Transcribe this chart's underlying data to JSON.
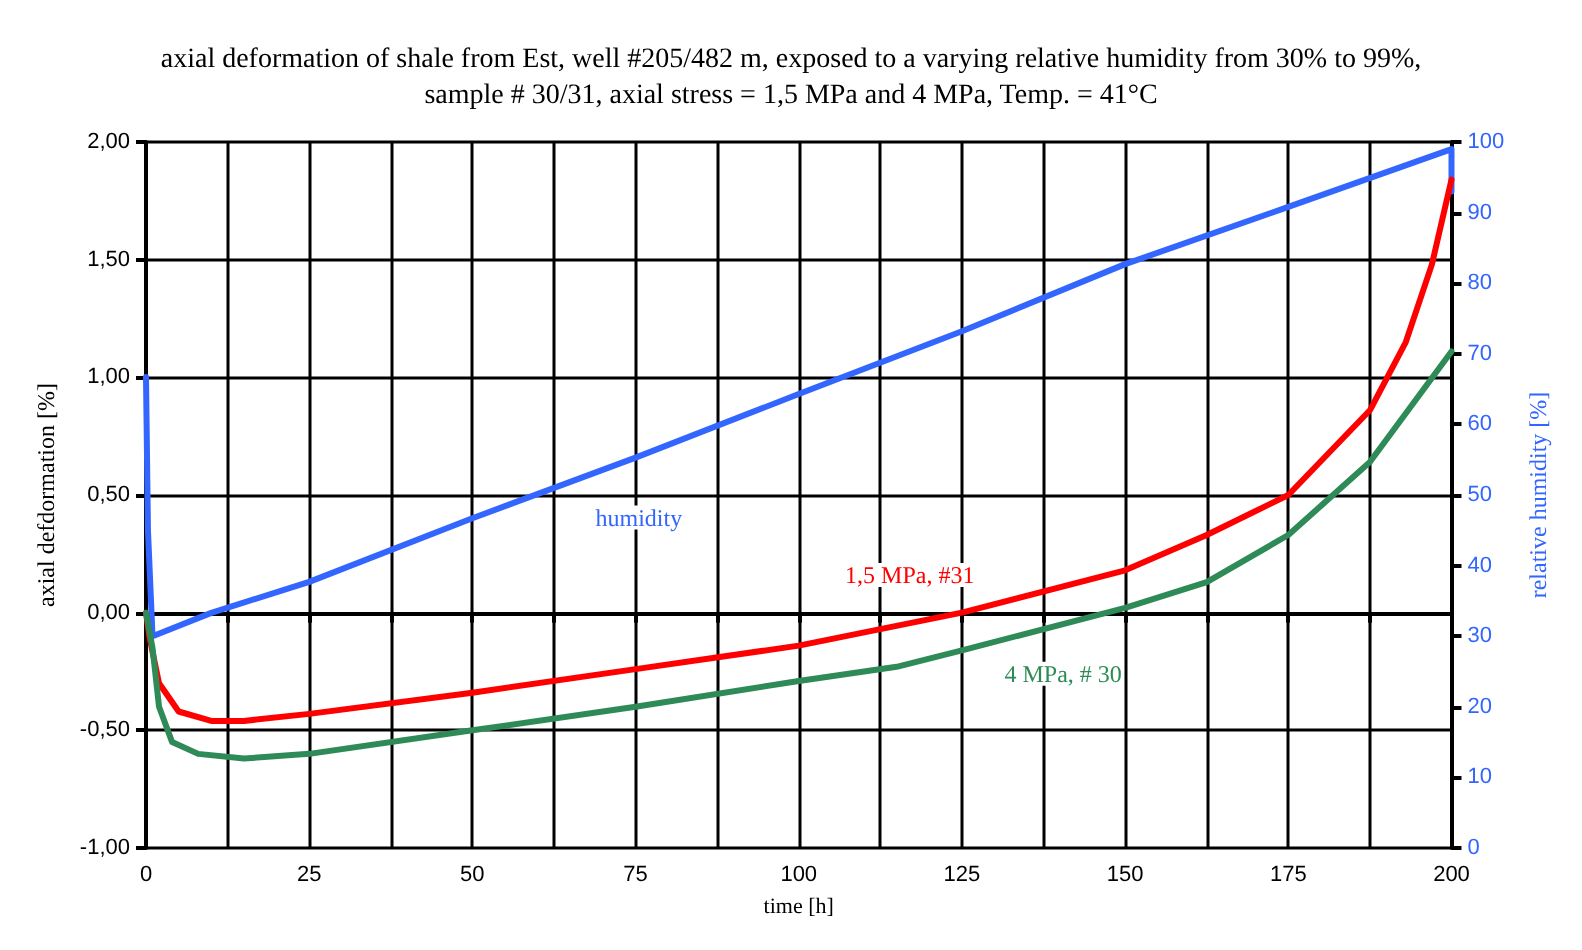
{
  "chart_data": {
    "type": "line",
    "title": "axial deformation of shale from Est, well #205/482 m, exposed to a varying relative humidity from 30% to 99%,\nsample # 30/31, axial stress = 1,5 MPa and 4 MPa, Temp. = 41°C",
    "xlabel": "time [h]",
    "ylabel": "axial defdormation [%]",
    "y2label": "relative humidity [%]",
    "grid": true,
    "legend": false,
    "marker": "none",
    "xlim": [
      0,
      200
    ],
    "xticks": [
      0,
      {
        "value": 12.5,
        "label": null
      },
      25,
      {
        "value": 37.5,
        "label": null
      },
      50,
      {
        "value": 62.5,
        "label": null
      },
      75,
      {
        "value": 87.5,
        "label": null
      },
      100,
      {
        "value": 112.5,
        "label": null
      },
      125,
      {
        "value": 137.5,
        "label": null
      },
      150,
      {
        "value": 162.5,
        "label": null
      },
      175,
      {
        "value": 187.5,
        "label": null
      },
      200
    ],
    "ylim": [
      -1,
      2
    ],
    "yticks": [
      {
        "value": -1,
        "label": "-1,00"
      },
      {
        "value": -0.5,
        "label": "-0,50"
      },
      {
        "value": 0,
        "label": "0,00"
      },
      {
        "value": 0.5,
        "label": "0,50"
      },
      {
        "value": 1,
        "label": "1,00"
      },
      {
        "value": 1.5,
        "label": "1,50"
      },
      {
        "value": 2,
        "label": "2,00"
      }
    ],
    "y2lim": [
      0,
      100
    ],
    "y2ticks": [
      0,
      10,
      20,
      30,
      40,
      50,
      60,
      70,
      80,
      90,
      100
    ],
    "series": [
      {
        "name": "humidity",
        "color": "#3366ff",
        "axis": "y2",
        "x": [
          0,
          0.3,
          1,
          10,
          25,
          50,
          75,
          100,
          125,
          150,
          175,
          200,
          200
        ],
        "values": [
          66.7,
          45,
          30,
          33.3,
          37.7,
          46.7,
          55.3,
          64.3,
          73.2,
          82.7,
          90.8,
          99,
          93
        ]
      },
      {
        "name": "1,5 MPa, #31",
        "color": "#ff0000",
        "x": [
          0,
          0.5,
          2,
          5,
          10,
          15,
          25,
          50,
          75,
          100,
          125,
          150,
          162.5,
          175,
          187.5,
          193,
          197,
          200
        ],
        "values": [
          0,
          -0.1,
          -0.3,
          -0.42,
          -0.46,
          -0.46,
          -0.43,
          -0.34,
          -0.24,
          -0.14,
          0,
          0.18,
          0.33,
          0.5,
          0.86,
          1.15,
          1.48,
          1.84
        ]
      },
      {
        "name": "4 MPa, # 30",
        "color": "#2e8b57",
        "x": [
          0,
          1,
          2,
          4,
          8,
          15,
          25,
          50,
          75,
          100,
          115,
          125,
          150,
          162.5,
          175,
          187.5,
          200
        ],
        "values": [
          0,
          -0.15,
          -0.4,
          -0.55,
          -0.6,
          -0.62,
          -0.6,
          -0.5,
          -0.4,
          -0.29,
          -0.23,
          -0.16,
          0.02,
          0.13,
          0.33,
          0.64,
          1.11
        ]
      }
    ]
  }
}
